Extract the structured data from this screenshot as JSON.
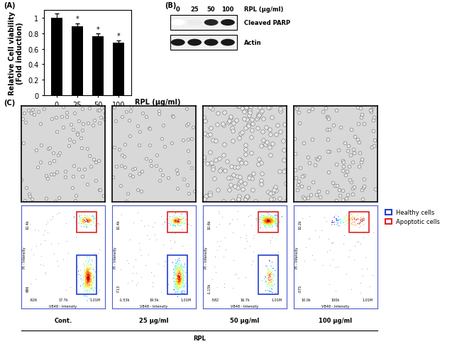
{
  "chart_data": {
    "type": "bar",
    "panel": "(A)",
    "y_label": "Relative Cell viability\n(Fold induction)",
    "x_label": "RPL (μg/ml)",
    "categories": [
      "0",
      "25",
      "50",
      "100"
    ],
    "values": [
      1.0,
      0.89,
      0.76,
      0.68
    ],
    "errors": [
      0.05,
      0.04,
      0.04,
      0.03
    ],
    "significance": [
      null,
      "*",
      "*",
      "*"
    ],
    "color": "#000000",
    "ylim": [
      0,
      1.1
    ],
    "yticks": [
      0,
      0.2,
      0.4,
      0.6,
      0.8,
      1
    ]
  },
  "blot": {
    "panel": "(B)",
    "unit": "RPL (μg/ml)",
    "lanes": [
      "0",
      "25",
      "50",
      "100"
    ],
    "rows": [
      {
        "name": "Cleaved PARP",
        "intensity": [
          0.0,
          0.08,
          0.85,
          0.9
        ]
      },
      {
        "name": "Actin",
        "intensity": [
          0.9,
          0.9,
          0.9,
          0.9
        ]
      }
    ]
  },
  "images": {
    "panel": "(C)",
    "unit": "RPL",
    "conditions": [
      "Cont.",
      "25 μg/ml",
      "50 μg/ml",
      "100 μg/ml"
    ],
    "gates": [
      {
        "name": "Healthy cells",
        "color": "#1f3fd0"
      },
      {
        "name": "Apoptotic cells",
        "color": "#e02020"
      }
    ],
    "flow": {
      "x_label": "VB48 - Intensity",
      "y_label": "PI - Intensity",
      "plots": [
        {
          "x_ticks": [
            "-826",
            "17.7k",
            "1.01M"
          ],
          "y_ticks": [
            "686",
            "10.4k"
          ],
          "gates": [
            "Healthy cells",
            "Apoptotic cells"
          ]
        },
        {
          "x_ticks": [
            "-1.53k",
            "19.5k",
            "1.01M"
          ],
          "y_ticks": [
            "-713",
            "10.4k"
          ],
          "gates": [
            "Healthy cells",
            "Apoptotic cells"
          ]
        },
        {
          "x_ticks": [
            "-582",
            "16.7k",
            "1.01M"
          ],
          "y_ticks": [
            "-1.15k",
            "10.6k"
          ],
          "gates": [
            "Healthy cells",
            "Apoptotic cells"
          ]
        },
        {
          "x_ticks": [
            "10.0k",
            "100k",
            "1.01M"
          ],
          "y_ticks": [
            "-375",
            "10.2k"
          ],
          "gates": [
            "Apoptotic cells"
          ]
        }
      ]
    }
  }
}
